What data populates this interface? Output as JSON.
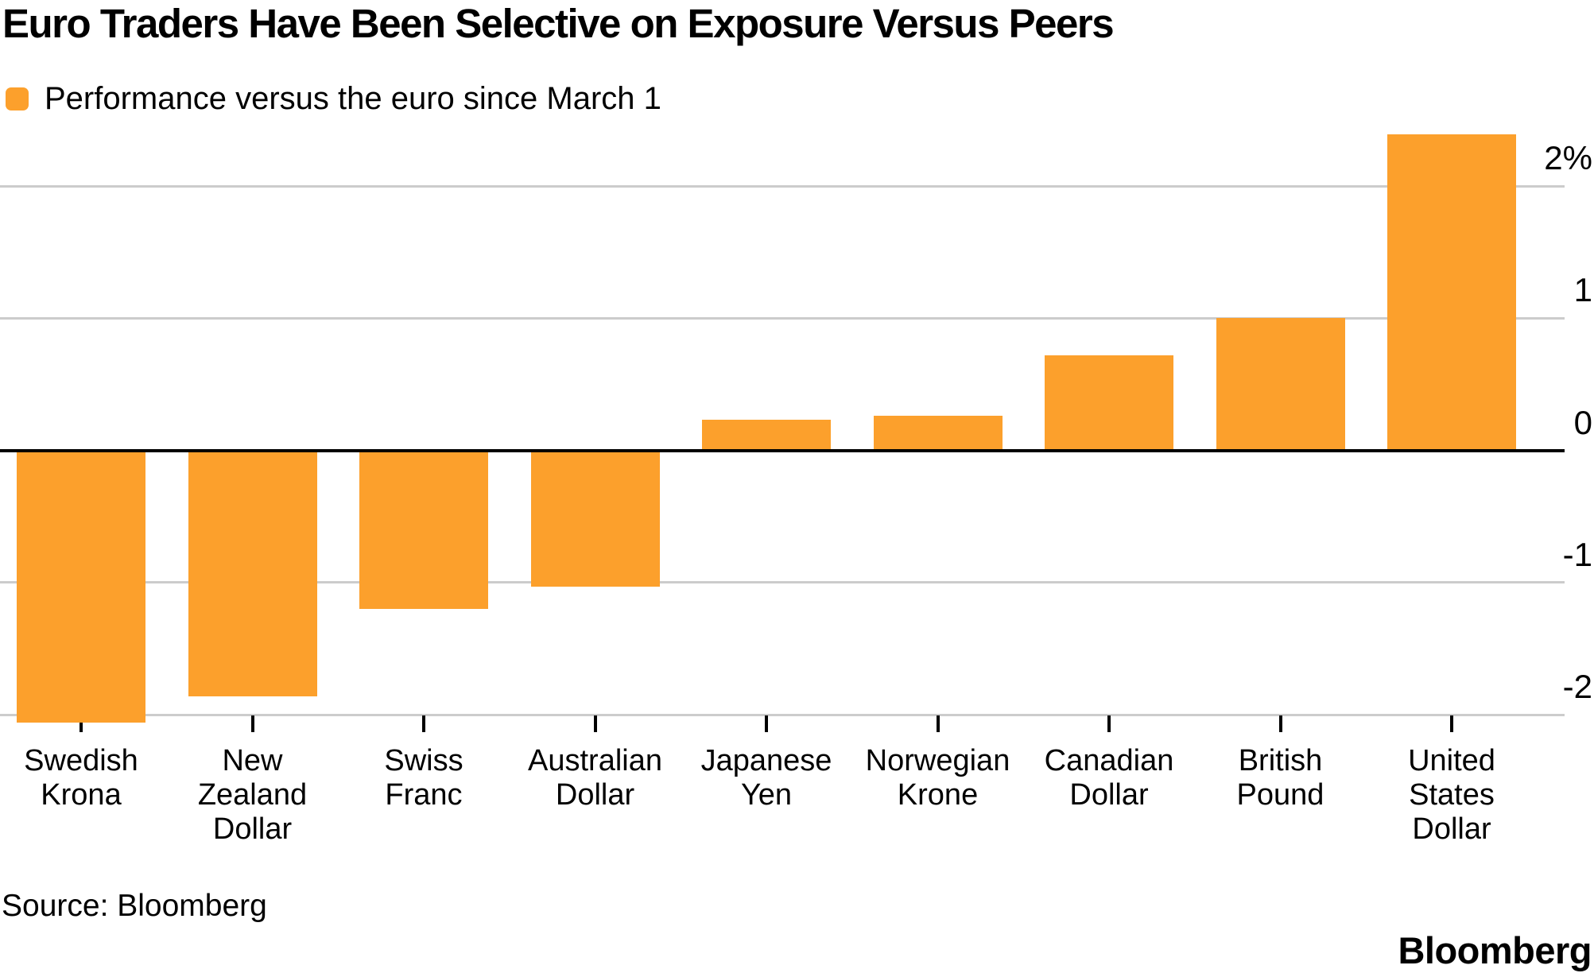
{
  "chart_data": {
    "type": "bar",
    "title": "Euro Traders Have Been Selective on Exposure Versus Peers",
    "legend": "Performance versus the euro since March 1",
    "categories": [
      [
        "Swedish",
        "Krona"
      ],
      [
        "New",
        "Zealand",
        "Dollar"
      ],
      [
        "Swiss",
        "Franc"
      ],
      [
        "Australian",
        "Dollar"
      ],
      [
        "Japanese",
        "Yen"
      ],
      [
        "Norwegian",
        "Krone"
      ],
      [
        "Canadian",
        "Dollar"
      ],
      [
        "British",
        "Pound"
      ],
      [
        "United",
        "States",
        "Dollar"
      ]
    ],
    "values": [
      -2.06,
      -1.86,
      -1.2,
      -1.03,
      0.23,
      0.26,
      0.72,
      1.0,
      2.39
    ],
    "yticks": [
      {
        "value": 2,
        "label": "2%"
      },
      {
        "value": 1,
        "label": "1"
      },
      {
        "value": 0,
        "label": "0"
      },
      {
        "value": -1,
        "label": "-1"
      },
      {
        "value": -2,
        "label": "-2"
      }
    ],
    "ylim": [
      -2.15,
      2.45
    ],
    "xlabel": "",
    "ylabel": "",
    "grid": "on",
    "legend_position": "top-left",
    "bar_color": "#FCA02C",
    "gridline_color": "#cccccc",
    "axis_color": "#000000",
    "source": "Source: Bloomberg",
    "brand": "Bloomberg"
  }
}
